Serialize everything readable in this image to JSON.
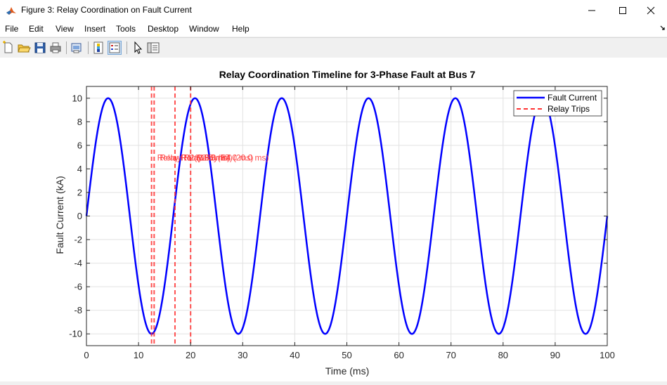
{
  "window": {
    "title": "Figure 3: Relay Coordination on Fault Current",
    "controls": [
      "minimize",
      "maximize",
      "close"
    ]
  },
  "menu": [
    "File",
    "Edit",
    "View",
    "Insert",
    "Tools",
    "Desktop",
    "Window",
    "Help"
  ],
  "toolbar": [
    "new-figure-icon",
    "open-file-icon",
    "save-icon",
    "print-icon",
    "print-preview-icon",
    "colorbar-icon",
    "legend-icon",
    "edit-plot-cursor-icon",
    "property-inspector-icon"
  ],
  "chart_data": {
    "type": "line",
    "title": "Relay Coordination Timeline for 3-Phase Fault at Bus 7",
    "xlabel": "Time (ms)",
    "ylabel": "Fault Current (kA)",
    "xlim": [
      0,
      100
    ],
    "ylim": [
      -11,
      11
    ],
    "xticks": [
      0,
      10,
      20,
      30,
      40,
      50,
      60,
      70,
      80,
      90,
      100
    ],
    "yticks": [
      -10,
      -8,
      -6,
      -4,
      -2,
      0,
      2,
      4,
      6,
      8,
      10
    ],
    "grid": true,
    "legend": "top-right",
    "series": [
      {
        "name": "Fault Current",
        "color": "#0000ff",
        "function": "10*sin(2*pi*60*t)",
        "amplitude": 10,
        "frequency_hz": 60
      }
    ],
    "relay_trips": {
      "name": "Relay Trips",
      "color": "#ff3333",
      "times_ms": [
        12.5,
        13.0,
        17.0,
        20.0
      ],
      "annotations": [
        {
          "text": "Relay R1 (12.5 ms)",
          "x": 12.5,
          "y": 5
        },
        {
          "text": "Relay R2 (13.0 ms)",
          "x": 13.0,
          "y": 5
        },
        {
          "text": "Relay R3 (17.0 ms)",
          "x": 17.0,
          "y": 5
        },
        {
          "text": "Relay R4 (20.0 ms)",
          "x": 20.0,
          "y": 5
        }
      ]
    }
  }
}
